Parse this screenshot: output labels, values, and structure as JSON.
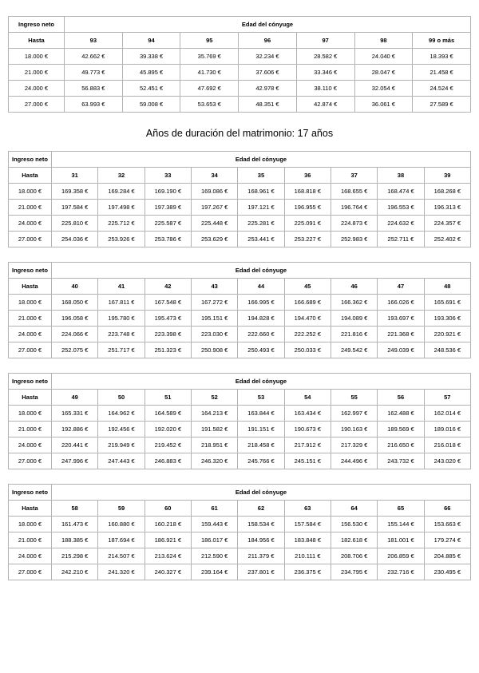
{
  "page": {
    "heading": "Años de duración del matrimonio: 17 años"
  },
  "labels": {
    "income_header": "Ingreso neto",
    "age_header": "Edad del cónyuge",
    "income_subheader": "Hasta"
  },
  "tables": [
    {
      "ages": [
        "93",
        "94",
        "95",
        "96",
        "97",
        "98",
        "99 o más"
      ],
      "rows": [
        {
          "income": "18.000 €",
          "values": [
            "42.662 €",
            "39.338 €",
            "35.769 €",
            "32.234 €",
            "28.582 €",
            "24.040 €",
            "18.393 €"
          ]
        },
        {
          "income": "21.000 €",
          "values": [
            "49.773 €",
            "45.895 €",
            "41.730 €",
            "37.606 €",
            "33.346 €",
            "28.047 €",
            "21.458 €"
          ]
        },
        {
          "income": "24.000 €",
          "values": [
            "56.883 €",
            "52.451 €",
            "47.692 €",
            "42.978 €",
            "38.110 €",
            "32.054 €",
            "24.524 €"
          ]
        },
        {
          "income": "27.000 €",
          "values": [
            "63.993 €",
            "59.008 €",
            "53.653 €",
            "48.351 €",
            "42.874 €",
            "36.061 €",
            "27.589 €"
          ]
        }
      ]
    },
    {
      "ages": [
        "31",
        "32",
        "33",
        "34",
        "35",
        "36",
        "37",
        "38",
        "39"
      ],
      "rows": [
        {
          "income": "18.000 €",
          "values": [
            "169.358 €",
            "169.284 €",
            "169.190 €",
            "169.086 €",
            "168.961 €",
            "168.818 €",
            "168.655 €",
            "168.474 €",
            "168.268 €"
          ]
        },
        {
          "income": "21.000 €",
          "values": [
            "197.584 €",
            "197.498 €",
            "197.389 €",
            "197.267 €",
            "197.121 €",
            "196.955 €",
            "196.764 €",
            "196.553 €",
            "196.313 €"
          ]
        },
        {
          "income": "24.000 €",
          "values": [
            "225.810 €",
            "225.712 €",
            "225.587 €",
            "225.448 €",
            "225.281 €",
            "225.091 €",
            "224.873 €",
            "224.632 €",
            "224.357 €"
          ]
        },
        {
          "income": "27.000 €",
          "values": [
            "254.036 €",
            "253.926 €",
            "253.786 €",
            "253.629 €",
            "253.441 €",
            "253.227 €",
            "252.983 €",
            "252.711 €",
            "252.402 €"
          ]
        }
      ]
    },
    {
      "ages": [
        "40",
        "41",
        "42",
        "43",
        "44",
        "45",
        "46",
        "47",
        "48"
      ],
      "rows": [
        {
          "income": "18.000 €",
          "values": [
            "168.050 €",
            "167.811 €",
            "167.548 €",
            "167.272 €",
            "166.995 €",
            "166.689 €",
            "166.362 €",
            "166.026 €",
            "165.691 €"
          ]
        },
        {
          "income": "21.000 €",
          "values": [
            "196.058 €",
            "195.780 €",
            "195.473 €",
            "195.151 €",
            "194.828 €",
            "194.470 €",
            "194.089 €",
            "193.697 €",
            "193.306 €"
          ]
        },
        {
          "income": "24.000 €",
          "values": [
            "224.066 €",
            "223.748 €",
            "223.398 €",
            "223.030 €",
            "222.660 €",
            "222.252 €",
            "221.816 €",
            "221.368 €",
            "220.921 €"
          ]
        },
        {
          "income": "27.000 €",
          "values": [
            "252.075 €",
            "251.717 €",
            "251.323 €",
            "250.908 €",
            "250.493 €",
            "250.033 €",
            "249.542 €",
            "249.039 €",
            "248.536 €"
          ]
        }
      ]
    },
    {
      "ages": [
        "49",
        "50",
        "51",
        "52",
        "53",
        "54",
        "55",
        "56",
        "57"
      ],
      "rows": [
        {
          "income": "18.000 €",
          "values": [
            "165.331 €",
            "164.962 €",
            "164.589 €",
            "164.213 €",
            "163.844 €",
            "163.434 €",
            "162.997 €",
            "162.488 €",
            "162.014 €"
          ]
        },
        {
          "income": "21.000 €",
          "values": [
            "192.886 €",
            "192.456 €",
            "192.020 €",
            "191.582 €",
            "191.151 €",
            "190.673 €",
            "190.163 €",
            "189.569 €",
            "189.016 €"
          ]
        },
        {
          "income": "24.000 €",
          "values": [
            "220.441 €",
            "219.949 €",
            "219.452 €",
            "218.951 €",
            "218.458 €",
            "217.912 €",
            "217.329 €",
            "216.650 €",
            "216.018 €"
          ]
        },
        {
          "income": "27.000 €",
          "values": [
            "247.996 €",
            "247.443 €",
            "246.883 €",
            "246.320 €",
            "245.766 €",
            "245.151 €",
            "244.496 €",
            "243.732 €",
            "243.020 €"
          ]
        }
      ]
    },
    {
      "ages": [
        "58",
        "59",
        "60",
        "61",
        "62",
        "63",
        "64",
        "65",
        "66"
      ],
      "rows": [
        {
          "income": "18.000 €",
          "values": [
            "161.473 €",
            "160.880 €",
            "160.218 €",
            "159.443 €",
            "158.534 €",
            "157.584 €",
            "156.530 €",
            "155.144 €",
            "153.663 €"
          ]
        },
        {
          "income": "21.000 €",
          "values": [
            "188.385 €",
            "187.694 €",
            "186.921 €",
            "186.017 €",
            "184.956 €",
            "183.848 €",
            "182.618 €",
            "181.001 €",
            "179.274 €"
          ]
        },
        {
          "income": "24.000 €",
          "values": [
            "215.298 €",
            "214.507 €",
            "213.624 €",
            "212.590 €",
            "211.379 €",
            "210.111 €",
            "208.706 €",
            "206.859 €",
            "204.885 €"
          ]
        },
        {
          "income": "27.000 €",
          "values": [
            "242.210 €",
            "241.320 €",
            "240.327 €",
            "239.164 €",
            "237.801 €",
            "236.375 €",
            "234.795 €",
            "232.716 €",
            "230.495 €"
          ]
        }
      ]
    }
  ]
}
